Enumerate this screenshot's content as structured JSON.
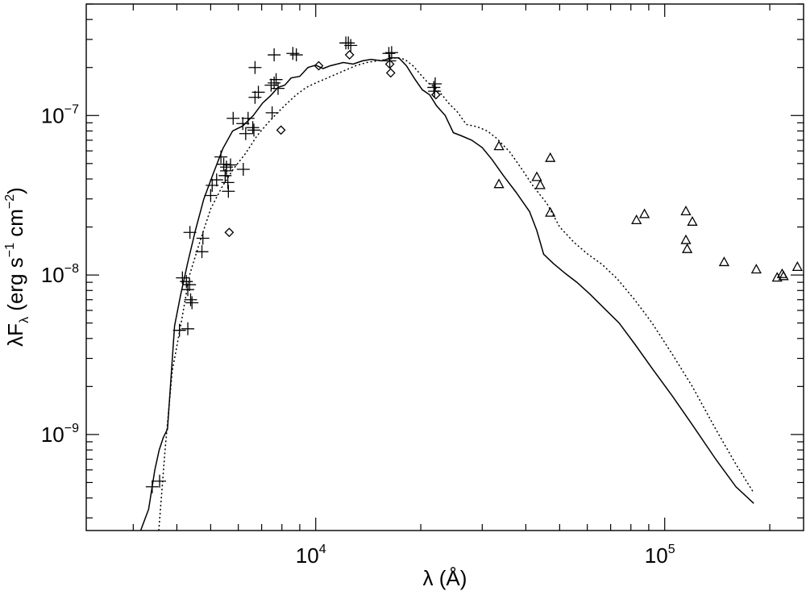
{
  "chart_data": {
    "type": "scatter",
    "xscale": "log",
    "yscale": "log",
    "xlim": [
      2200,
      250000
    ],
    "ylim": [
      2.5e-10,
      5e-07
    ],
    "x_ticks": [
      {
        "mantissa": "10",
        "exp": "4"
      },
      {
        "mantissa": "10",
        "exp": "5"
      }
    ],
    "y_ticks": [
      {
        "mantissa": "10",
        "exp": "−9"
      },
      {
        "mantissa": "10",
        "exp": "−8"
      },
      {
        "mantissa": "10",
        "exp": "−7"
      }
    ],
    "xlabel": {
      "main": "λ (Å)"
    },
    "ylabel": {
      "pre": "λF",
      "sub": "λ",
      "mid1": " (erg s",
      "sup1": "−1",
      "mid2": " cm",
      "sup2": "−2",
      "post": ")"
    },
    "series": [
      {
        "style": "solid",
        "x": [
          3150,
          3320,
          3460,
          3560,
          3660,
          3760,
          3940,
          4100,
          4300,
          4520,
          4780,
          5080,
          5420,
          5780,
          6180,
          6620,
          7050,
          7420,
          7800,
          8150,
          8500,
          9000,
          9500,
          10000,
          10500,
          11000,
          12000,
          12800,
          13600,
          14400,
          15500,
          16400,
          17300,
          18200,
          19200,
          20200,
          21200,
          22200,
          23500,
          24800,
          26000,
          28000,
          30000,
          32000,
          34500,
          37500,
          41000,
          43000,
          45000,
          48000,
          52000,
          56000,
          61000,
          67000,
          74000,
          82000,
          92000,
          105000,
          120000,
          140000,
          160000,
          180000
        ],
        "y": [
          2.5e-10,
          3.4e-10,
          6e-10,
          8e-10,
          9.6e-10,
          1.08e-09,
          4.8e-09,
          7.5e-09,
          1.2e-08,
          1.9e-08,
          3e-08,
          4.3e-08,
          6.2e-08,
          8e-08,
          8.6e-08,
          1e-07,
          1.2e-07,
          1.33e-07,
          1.5e-07,
          1.55e-07,
          1.72e-07,
          1.76e-07,
          2e-07,
          2.07e-07,
          1.97e-07,
          2.05e-07,
          2.15e-07,
          2.1e-07,
          2.2e-07,
          2.25e-07,
          2.2e-07,
          2.3e-07,
          2.3e-07,
          2.05e-07,
          1.7e-07,
          1.45e-07,
          1.35e-07,
          1.15e-07,
          1e-07,
          7.8e-08,
          7.5e-08,
          7e-08,
          6.3e-08,
          5.3e-08,
          4.2e-08,
          3.3e-08,
          2.5e-08,
          1.9e-08,
          1.35e-08,
          1.18e-08,
          1.02e-08,
          9e-09,
          7.6e-09,
          6.2e-09,
          5e-09,
          3.7e-09,
          2.6e-09,
          1.75e-09,
          1.15e-09,
          7e-10,
          4.7e-10,
          3.7e-10
        ]
      },
      {
        "style": "dotted",
        "x": [
          3550,
          3700,
          3880,
          4100,
          4350,
          4650,
          5000,
          5400,
          5800,
          6300,
          6800,
          7300,
          7800,
          8300,
          8800,
          9400,
          10000,
          11000,
          12000,
          13000,
          14000,
          15000,
          16000,
          17000,
          18000,
          19000,
          20000,
          21000,
          22000,
          23000,
          24000,
          25500,
          27000,
          29000,
          31000,
          33000,
          36000,
          39000,
          42000,
          46000,
          50000,
          55000,
          60000,
          66000,
          73000,
          82000,
          92000,
          105000,
          120000,
          140000,
          160000,
          180000
        ],
        "y": [
          2.5e-10,
          8e-10,
          2.5e-09,
          4.8e-09,
          1e-08,
          1.6e-08,
          2.6e-08,
          3.6e-08,
          4.6e-08,
          5.8e-08,
          7.5e-08,
          9e-08,
          1.05e-07,
          1.2e-07,
          1.35e-07,
          1.5e-07,
          1.6e-07,
          1.75e-07,
          1.9e-07,
          2.05e-07,
          2.15e-07,
          2.2e-07,
          2.25e-07,
          2.3e-07,
          2.25e-07,
          2.05e-07,
          1.8e-07,
          1.6e-07,
          1.5e-07,
          1.35e-07,
          1.2e-07,
          1.05e-07,
          8.8e-08,
          8.5e-08,
          8e-08,
          7.2e-08,
          5.9e-08,
          4.6e-08,
          3.6e-08,
          2.8e-08,
          2e-08,
          1.6e-08,
          1.36e-08,
          1.17e-08,
          9.5e-09,
          7e-09,
          5e-09,
          3.2e-09,
          2e-09,
          1.08e-09,
          6.5e-10,
          4.3e-10
        ]
      },
      {
        "style": "plus",
        "points": [
          [
            3400,
            4.7e-10
          ],
          [
            3570,
            5.1e-10
          ],
          [
            4070,
            4.5e-09
          ],
          [
            4300,
            4.6e-09
          ],
          [
            4150,
            9.6e-09
          ],
          [
            4260,
            9.1e-09
          ],
          [
            4350,
            8.7e-09
          ],
          [
            4300,
            8.1e-09
          ],
          [
            4380,
            7e-09
          ],
          [
            4420,
            6.7e-09
          ],
          [
            4360,
            1.85e-08
          ],
          [
            4750,
            1.7e-08
          ],
          [
            4720,
            1.4e-08
          ],
          [
            5000,
            3.15e-08
          ],
          [
            5050,
            3.65e-08
          ],
          [
            5200,
            3.95e-08
          ],
          [
            5350,
            5.5e-08
          ],
          [
            5450,
            4.95e-08
          ],
          [
            5550,
            4.75e-08
          ],
          [
            5550,
            4.5e-08
          ],
          [
            5500,
            4.2e-08
          ],
          [
            5600,
            3.8e-08
          ],
          [
            5620,
            3.35e-08
          ],
          [
            5700,
            4.9e-08
          ],
          [
            5800,
            9.6e-08
          ],
          [
            6400,
            9.6e-08
          ],
          [
            6180,
            8.9e-08
          ],
          [
            6300,
            7.7e-08
          ],
          [
            6600,
            8.4e-08
          ],
          [
            6650,
            8.1e-08
          ],
          [
            6200,
            4.6e-08
          ],
          [
            6850,
            1.4e-07
          ],
          [
            6700,
            1.3e-07
          ],
          [
            6700,
            2e-07
          ],
          [
            7500,
            1.04e-07
          ],
          [
            7450,
            1.55e-07
          ],
          [
            7600,
            1.6e-07
          ],
          [
            7700,
            1.68e-07
          ],
          [
            7800,
            1.48e-07
          ],
          [
            7600,
            2.4e-07
          ],
          [
            8600,
            2.45e-07
          ],
          [
            8800,
            2.4e-07
          ],
          [
            12200,
            2.85e-07
          ],
          [
            12400,
            2.85e-07
          ],
          [
            12600,
            2.75e-07
          ],
          [
            16200,
            2.45e-07
          ],
          [
            16500,
            2.48e-07
          ],
          [
            16300,
            2.2e-07
          ],
          [
            22000,
            1.58e-07
          ],
          [
            21800,
            1.5e-07
          ],
          [
            21900,
            1.42e-07
          ]
        ]
      },
      {
        "style": "diamond",
        "points": [
          [
            5650,
            1.85e-08
          ],
          [
            7950,
            8.1e-08
          ],
          [
            10200,
            2.05e-07
          ],
          [
            12500,
            2.4e-07
          ],
          [
            16300,
            2.1e-07
          ],
          [
            16400,
            1.85e-07
          ],
          [
            22100,
            1.35e-07
          ]
        ]
      },
      {
        "style": "triangle",
        "points": [
          [
            33500,
            6.4e-08
          ],
          [
            33500,
            3.7e-08
          ],
          [
            43000,
            4.1e-08
          ],
          [
            44000,
            3.65e-08
          ],
          [
            47000,
            5.4e-08
          ],
          [
            47000,
            2.45e-08
          ],
          [
            83000,
            2.2e-08
          ],
          [
            87500,
            2.4e-08
          ],
          [
            115000,
            2.5e-08
          ],
          [
            120000,
            2.15e-08
          ],
          [
            115000,
            1.65e-08
          ],
          [
            116000,
            1.45e-08
          ],
          [
            148000,
            1.2e-08
          ],
          [
            183000,
            1.08e-08
          ],
          [
            210000,
            9.6e-09
          ],
          [
            217000,
            1.01e-08
          ],
          [
            219000,
            9.8e-09
          ],
          [
            240000,
            1.12e-08
          ]
        ]
      }
    ]
  }
}
